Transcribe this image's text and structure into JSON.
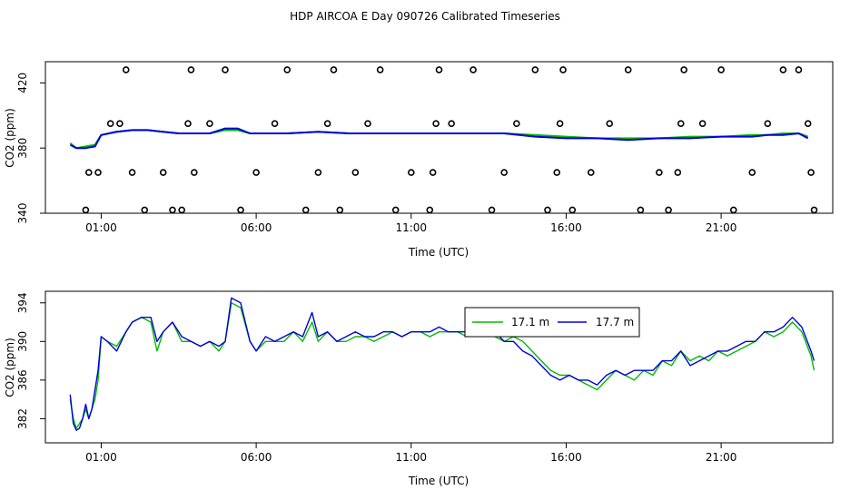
{
  "title": "HDP AIRCOA E  Day 090726  Calibrated Timeseries",
  "colors": {
    "s1": "#00bb00",
    "s2": "#0000dd",
    "points": "#000000"
  },
  "chart_data": [
    {
      "type": "line",
      "xlabel": "Time (UTC)",
      "ylabel": "CO2 (ppm)",
      "xlim": [
        -0.8,
        24.6
      ],
      "ylim": [
        340,
        433
      ],
      "x_ticks": [
        1,
        6,
        11,
        16,
        21
      ],
      "x_tick_labels": [
        "01:00",
        "06:00",
        "11:00",
        "16:00",
        "21:00"
      ],
      "y_ticks": [
        340,
        380,
        420
      ],
      "y_tick_labels": [
        "340",
        "380",
        "420"
      ],
      "lines": [
        {
          "x": [
            0,
            0.2,
            0.5,
            0.8,
            1.0,
            1.5,
            2.0,
            2.5,
            3.0,
            3.5,
            4.0,
            4.5,
            5.0,
            5.4,
            5.8,
            6.0,
            7,
            8,
            9,
            10,
            11,
            12,
            13,
            14,
            15,
            16,
            17,
            18,
            19,
            20,
            21,
            22,
            22.5,
            23,
            23.5,
            23.8
          ],
          "y": [
            383,
            380,
            381,
            382,
            388,
            390,
            391,
            391,
            390,
            389,
            389,
            389,
            391,
            391,
            389,
            389,
            389,
            390,
            389,
            389,
            389,
            389,
            389,
            389,
            388,
            387,
            386,
            386,
            386,
            387,
            387,
            388,
            388,
            389,
            389,
            387
          ]
        },
        {
          "x": [
            0,
            0.2,
            0.5,
            0.8,
            1.0,
            1.5,
            2.0,
            2.5,
            3.0,
            3.5,
            4.0,
            4.5,
            5.0,
            5.4,
            5.8,
            6.0,
            7,
            8,
            9,
            10,
            11,
            12,
            13,
            14,
            15,
            16,
            17,
            18,
            19,
            20,
            21,
            22,
            22.5,
            23,
            23.5,
            23.8
          ],
          "y": [
            382,
            380,
            380,
            381,
            388,
            390,
            391,
            391,
            390,
            389,
            389,
            389,
            392,
            392,
            389,
            389,
            389,
            390,
            389,
            389,
            389,
            389,
            389,
            389,
            387,
            386,
            386,
            385,
            386,
            386,
            387,
            387,
            388,
            388,
            389,
            386
          ]
        }
      ],
      "points": [
        {
          "x": 0.5,
          "y": 342
        },
        {
          "x": 0.6,
          "y": 365
        },
        {
          "x": 0.9,
          "y": 365
        },
        {
          "x": 1.3,
          "y": 395
        },
        {
          "x": 1.6,
          "y": 395
        },
        {
          "x": 1.8,
          "y": 428
        },
        {
          "x": 2.0,
          "y": 365
        },
        {
          "x": 2.4,
          "y": 342
        },
        {
          "x": 3.0,
          "y": 365
        },
        {
          "x": 3.3,
          "y": 342
        },
        {
          "x": 3.6,
          "y": 342
        },
        {
          "x": 3.8,
          "y": 395
        },
        {
          "x": 3.9,
          "y": 428
        },
        {
          "x": 4.0,
          "y": 365
        },
        {
          "x": 4.5,
          "y": 395
        },
        {
          "x": 5.0,
          "y": 428
        },
        {
          "x": 5.5,
          "y": 342
        },
        {
          "x": 6.0,
          "y": 365
        },
        {
          "x": 6.6,
          "y": 395
        },
        {
          "x": 7.0,
          "y": 428
        },
        {
          "x": 7.6,
          "y": 342
        },
        {
          "x": 8.0,
          "y": 365
        },
        {
          "x": 8.3,
          "y": 395
        },
        {
          "x": 8.5,
          "y": 428
        },
        {
          "x": 8.7,
          "y": 342
        },
        {
          "x": 9.2,
          "y": 365
        },
        {
          "x": 9.6,
          "y": 395
        },
        {
          "x": 10.0,
          "y": 428
        },
        {
          "x": 10.5,
          "y": 342
        },
        {
          "x": 11.0,
          "y": 365
        },
        {
          "x": 11.6,
          "y": 342
        },
        {
          "x": 11.7,
          "y": 365
        },
        {
          "x": 11.8,
          "y": 395
        },
        {
          "x": 11.9,
          "y": 428
        },
        {
          "x": 12.3,
          "y": 395
        },
        {
          "x": 13.0,
          "y": 428
        },
        {
          "x": 13.6,
          "y": 342
        },
        {
          "x": 14.0,
          "y": 365
        },
        {
          "x": 14.4,
          "y": 395
        },
        {
          "x": 15.0,
          "y": 428
        },
        {
          "x": 15.4,
          "y": 342
        },
        {
          "x": 15.7,
          "y": 365
        },
        {
          "x": 15.8,
          "y": 395
        },
        {
          "x": 15.9,
          "y": 428
        },
        {
          "x": 16.2,
          "y": 342
        },
        {
          "x": 16.8,
          "y": 365
        },
        {
          "x": 17.4,
          "y": 395
        },
        {
          "x": 18.0,
          "y": 428
        },
        {
          "x": 18.4,
          "y": 342
        },
        {
          "x": 19.0,
          "y": 365
        },
        {
          "x": 19.3,
          "y": 342
        },
        {
          "x": 19.6,
          "y": 365
        },
        {
          "x": 19.7,
          "y": 395
        },
        {
          "x": 19.8,
          "y": 428
        },
        {
          "x": 20.4,
          "y": 395
        },
        {
          "x": 21.0,
          "y": 428
        },
        {
          "x": 21.4,
          "y": 342
        },
        {
          "x": 22.0,
          "y": 365
        },
        {
          "x": 22.5,
          "y": 395
        },
        {
          "x": 23.0,
          "y": 428
        },
        {
          "x": 23.5,
          "y": 428
        },
        {
          "x": 23.8,
          "y": 395
        },
        {
          "x": 23.9,
          "y": 365
        },
        {
          "x": 24.0,
          "y": 342
        }
      ]
    },
    {
      "type": "line",
      "xlabel": "Time (UTC)",
      "ylabel": "CO2 (ppm)",
      "xlim": [
        -0.8,
        24.6
      ],
      "ylim": [
        379.5,
        395.2
      ],
      "x_ticks": [
        1,
        6,
        11,
        16,
        21
      ],
      "x_tick_labels": [
        "01:00",
        "06:00",
        "11:00",
        "16:00",
        "21:00"
      ],
      "y_ticks": [
        382,
        386,
        390,
        394
      ],
      "y_tick_labels": [
        "382",
        "386",
        "390",
        "394"
      ],
      "legend_position": "top-center-right",
      "series": [
        {
          "name": "17.1 m",
          "x": [
            0,
            0.1,
            0.2,
            0.3,
            0.4,
            0.5,
            0.6,
            0.7,
            0.8,
            0.9,
            1.0,
            1.2,
            1.5,
            1.8,
            2.0,
            2.3,
            2.6,
            2.8,
            3.0,
            3.3,
            3.6,
            3.9,
            4.2,
            4.5,
            4.8,
            5.0,
            5.2,
            5.5,
            5.8,
            6.0,
            6.3,
            6.6,
            6.9,
            7.2,
            7.5,
            7.8,
            8.0,
            8.3,
            8.6,
            8.9,
            9.2,
            9.5,
            9.8,
            10.1,
            10.4,
            10.7,
            11.0,
            11.3,
            11.6,
            11.9,
            12.2,
            12.5,
            12.8,
            13.1,
            13.4,
            13.7,
            14.0,
            14.3,
            14.6,
            14.9,
            15.2,
            15.5,
            15.8,
            16.1,
            16.4,
            16.7,
            17.0,
            17.3,
            17.6,
            17.9,
            18.2,
            18.5,
            18.8,
            19.1,
            19.4,
            19.7,
            20.0,
            20.3,
            20.6,
            20.9,
            21.2,
            21.5,
            21.8,
            22.1,
            22.4,
            22.7,
            23.0,
            23.3,
            23.6,
            23.9,
            24.0
          ],
          "y": [
            384,
            382,
            381,
            381.5,
            382,
            383,
            382,
            383,
            384,
            386,
            390.5,
            390,
            389.5,
            391,
            392,
            392.5,
            392,
            389,
            391,
            392,
            390,
            390,
            389.5,
            390,
            389,
            390,
            394,
            393.5,
            390,
            389,
            390,
            390,
            390,
            391,
            390,
            392,
            390,
            391,
            390,
            390,
            390.5,
            390.5,
            390,
            390.5,
            391,
            390.5,
            391,
            391,
            390.5,
            391,
            391,
            391,
            390.5,
            391,
            391,
            390.5,
            390,
            390.5,
            390,
            389,
            388,
            387,
            386.5,
            386.5,
            386,
            385.5,
            385,
            386,
            387,
            386.5,
            386,
            387,
            386.5,
            388,
            387.5,
            389,
            388,
            388.5,
            388,
            389,
            388.5,
            389,
            389.5,
            390,
            391,
            390.5,
            391,
            392,
            391,
            388.5,
            387
          ]
        },
        {
          "name": "17.7 m",
          "x": [
            0,
            0.1,
            0.2,
            0.3,
            0.4,
            0.5,
            0.6,
            0.7,
            0.8,
            0.9,
            1.0,
            1.2,
            1.5,
            1.8,
            2.0,
            2.3,
            2.6,
            2.8,
            3.0,
            3.3,
            3.6,
            3.9,
            4.2,
            4.5,
            4.8,
            5.0,
            5.2,
            5.5,
            5.8,
            6.0,
            6.3,
            6.6,
            6.9,
            7.2,
            7.5,
            7.8,
            8.0,
            8.3,
            8.6,
            8.9,
            9.2,
            9.5,
            9.8,
            10.1,
            10.4,
            10.7,
            11.0,
            11.3,
            11.6,
            11.9,
            12.2,
            12.5,
            12.8,
            13.1,
            13.4,
            13.7,
            14.0,
            14.3,
            14.6,
            14.9,
            15.2,
            15.5,
            15.8,
            16.1,
            16.4,
            16.7,
            17.0,
            17.3,
            17.6,
            17.9,
            18.2,
            18.5,
            18.8,
            19.1,
            19.4,
            19.7,
            20.0,
            20.3,
            20.6,
            20.9,
            21.2,
            21.5,
            21.8,
            22.1,
            22.4,
            22.7,
            23.0,
            23.3,
            23.6,
            23.9,
            24.0
          ],
          "y": [
            384.5,
            381.5,
            380.8,
            381,
            382,
            383.5,
            382,
            383,
            385,
            387,
            390.5,
            390,
            389,
            391,
            392,
            392.5,
            392.5,
            390,
            391,
            392,
            390.5,
            390,
            389.5,
            390,
            389.5,
            390,
            394.5,
            394,
            390,
            389,
            390.5,
            390,
            390.5,
            391,
            390.5,
            393,
            390.5,
            391,
            390,
            390.5,
            391,
            390.5,
            390.5,
            391,
            391,
            390.5,
            391,
            391,
            391,
            391.5,
            391,
            391,
            391,
            391,
            391,
            391,
            390,
            390,
            389,
            388.5,
            387.5,
            386.5,
            386,
            386.5,
            386,
            386,
            385.5,
            386.5,
            387,
            386.5,
            387,
            387,
            387,
            388,
            388,
            389,
            387.5,
            388,
            388.5,
            389,
            389,
            389.5,
            390,
            390,
            391,
            391,
            391.5,
            392.5,
            391.5,
            389,
            388
          ]
        }
      ]
    }
  ]
}
